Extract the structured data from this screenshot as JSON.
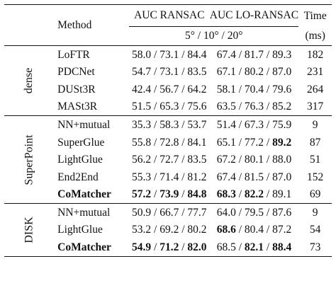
{
  "header": {
    "method": "Method",
    "auc_ransac": "AUC RANSAC",
    "auc_lo_ransac": "AUC LO-RANSAC",
    "time": "Time",
    "thresholds": "5° / 10° / 20°",
    "time_unit": "(ms)"
  },
  "groups": [
    {
      "label": "dense",
      "rows": [
        {
          "method": "LoFTR",
          "r1": "58.0",
          "r2": "73.1",
          "r3": "84.4",
          "l1": "67.4",
          "l2": "81.7",
          "l3": "89.3",
          "time": "182"
        },
        {
          "method": "PDCNet",
          "r1": "54.7",
          "r2": "73.1",
          "r3": "83.5",
          "l1": "67.1",
          "l2": "80.2",
          "l3": "87.0",
          "time": "231"
        },
        {
          "method": "DUSt3R",
          "r1": "42.4",
          "r2": "56.7",
          "r3": "64.2",
          "l1": "58.1",
          "l2": "70.4",
          "l3": "79.6",
          "time": "264"
        },
        {
          "method": "MASt3R",
          "r1": "51.5",
          "r2": "65.3",
          "r3": "75.6",
          "l1": "63.5",
          "l2": "76.3",
          "l3": "85.2",
          "time": "317"
        }
      ]
    },
    {
      "label": "SuperPoint",
      "rows": [
        {
          "method": "NN+mutual",
          "r1": "35.3",
          "r2": "58.3",
          "r3": "53.7",
          "l1": "51.4",
          "l2": "67.3",
          "l3": "75.9",
          "time": "9"
        },
        {
          "method": "SuperGlue",
          "r1": "55.8",
          "r2": "72.8",
          "r3": "84.1",
          "l1": "65.1",
          "l2": "77.2",
          "l3": "89.2",
          "time": "87",
          "bold": [
            "l3"
          ]
        },
        {
          "method": "LightGlue",
          "r1": "56.2",
          "r2": "72.7",
          "r3": "83.5",
          "l1": "67.2",
          "l2": "80.1",
          "l3": "88.0",
          "time": "51"
        },
        {
          "method": "End2End",
          "r1": "55.3",
          "r2": "71.4",
          "r3": "81.2",
          "l1": "67.4",
          "l2": "81.5",
          "l3": "87.0",
          "time": "152"
        },
        {
          "method": "CoMatcher",
          "r1": "57.2",
          "r2": "73.9",
          "r3": "84.8",
          "l1": "68.3",
          "l2": "82.2",
          "l3": "89.1",
          "time": "69",
          "bold": [
            "method",
            "r1",
            "r2",
            "r3",
            "l1",
            "l2"
          ]
        }
      ]
    },
    {
      "label": "DISK",
      "rows": [
        {
          "method": "NN+mutual",
          "r1": "50.9",
          "r2": "66.7",
          "r3": "77.7",
          "l1": "64.0",
          "l2": "79.5",
          "l3": "87.6",
          "time": "9"
        },
        {
          "method": "LightGlue",
          "r1": "53.2",
          "r2": "69.2",
          "r3": "80.2",
          "l1": "68.6",
          "l2": "80.4",
          "l3": "87.2",
          "time": "54",
          "bold": [
            "l1"
          ]
        },
        {
          "method": "CoMatcher",
          "r1": "54.9",
          "r2": "71.2",
          "r3": "82.0",
          "l1": "68.5",
          "l2": "82.1",
          "l3": "88.4",
          "time": "73",
          "bold": [
            "method",
            "r1",
            "r2",
            "r3",
            "l2",
            "l3"
          ]
        }
      ]
    }
  ]
}
